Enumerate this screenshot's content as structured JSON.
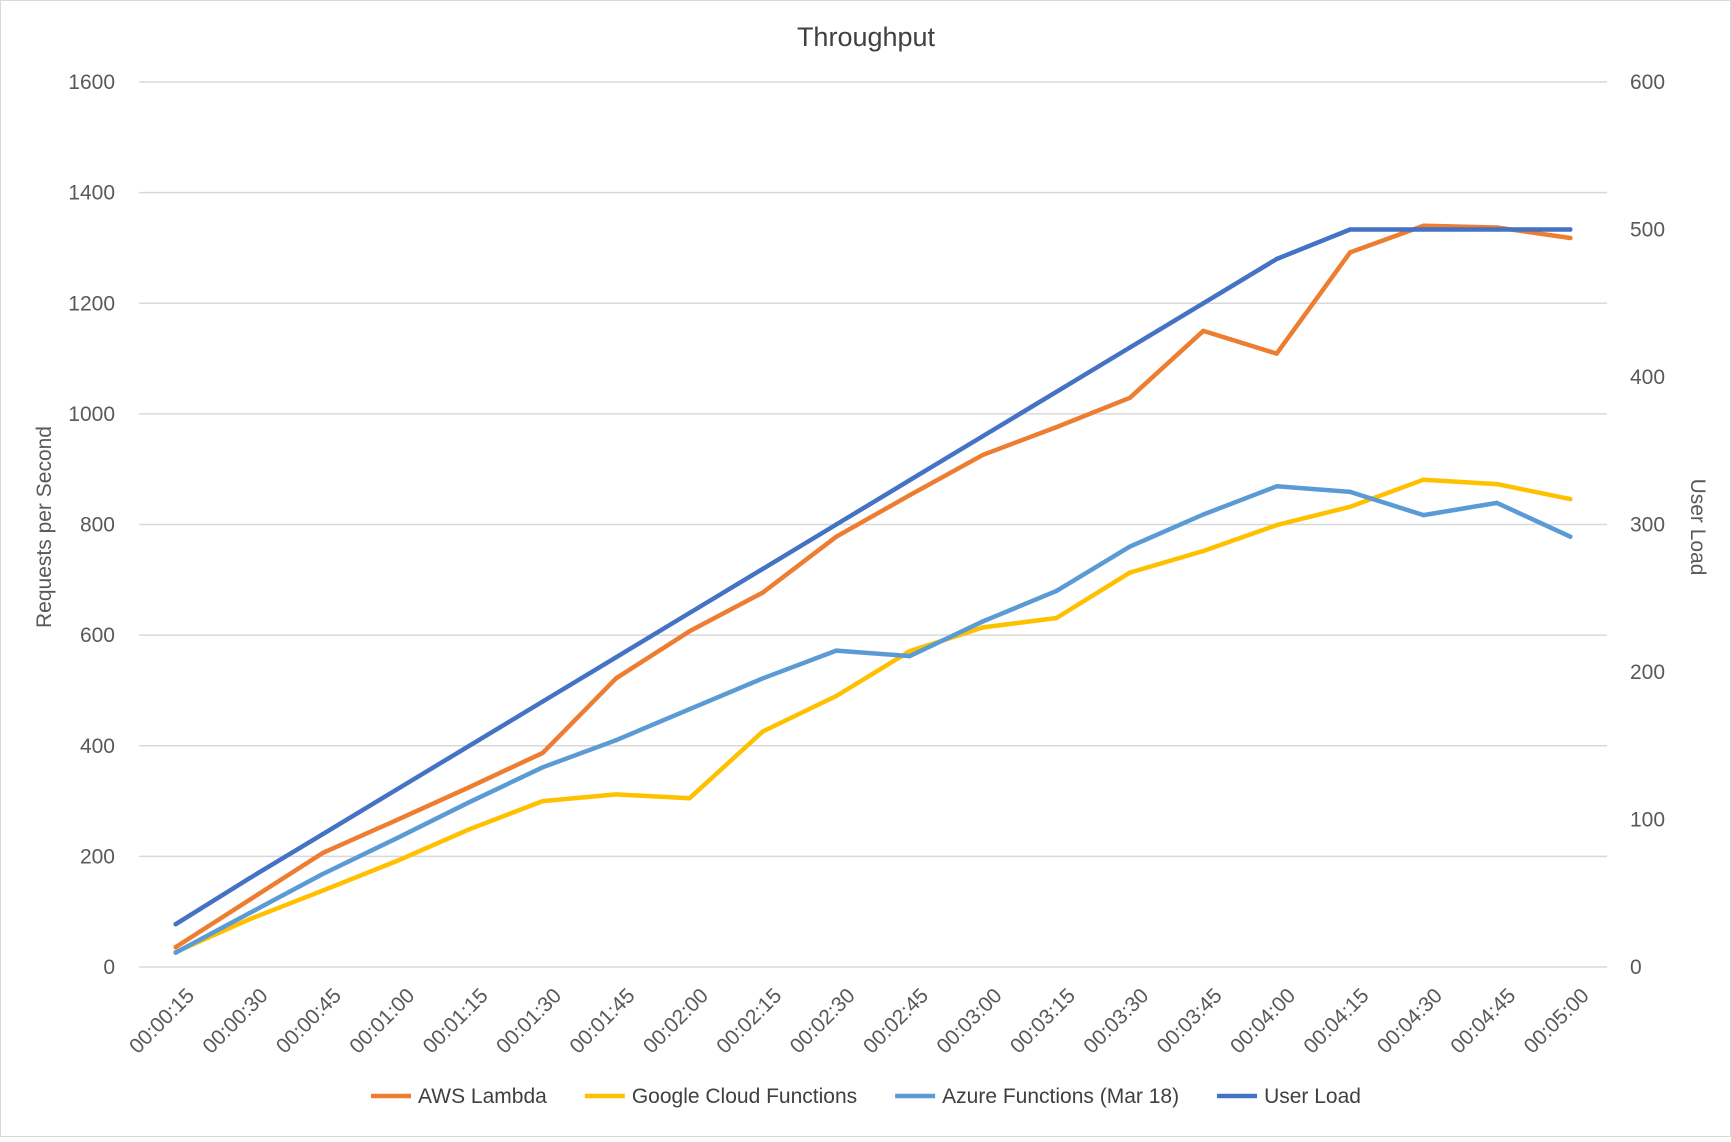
{
  "chart_data": {
    "type": "line",
    "title": "Throughput",
    "ylabel": "Requests per Second",
    "y2label": "User Load",
    "ylim": [
      0,
      1600
    ],
    "y2lim": [
      0,
      600
    ],
    "yticks": [
      "0",
      "200",
      "400",
      "600",
      "800",
      "1000",
      "1200",
      "1400",
      "1600"
    ],
    "y2ticks": [
      "0",
      "100",
      "200",
      "300",
      "400",
      "500",
      "600"
    ],
    "grid": true,
    "legend_position": "bottom",
    "categories": [
      "00:00:15",
      "00:00:30",
      "00:00:45",
      "00:01:00",
      "00:01:15",
      "00:01:30",
      "00:01:45",
      "00:02:00",
      "00:02:15",
      "00:02:30",
      "00:02:45",
      "00:03:00",
      "00:03:15",
      "00:03:30",
      "00:03:45",
      "00:04:00",
      "00:04:15",
      "00:04:30",
      "00:04:45",
      "00:05:00"
    ],
    "series": [
      {
        "name": "AWS Lambda",
        "color": "#ED7D31",
        "axis": "left",
        "values": [
          36,
          121,
          206,
          265,
          325,
          387,
          522,
          607,
          677,
          778,
          853,
          926,
          976,
          1029,
          1150,
          1109,
          1292,
          1340,
          1337,
          1318
        ]
      },
      {
        "name": "Google Cloud Functions",
        "color": "#FFC000",
        "axis": "left",
        "values": [
          27,
          86,
          138,
          191,
          249,
          300,
          312,
          305,
          426,
          490,
          571,
          614,
          631,
          713,
          752,
          799,
          832,
          881,
          873,
          846
        ]
      },
      {
        "name": "Azure Functions (Mar 18)",
        "color": "#5B9BD5",
        "axis": "left",
        "values": [
          26,
          97,
          168,
          232,
          298,
          361,
          410,
          466,
          522,
          572,
          562,
          625,
          680,
          760,
          818,
          869,
          859,
          817,
          839,
          778
        ]
      },
      {
        "name": "User Load",
        "color": "#4472C4",
        "axis": "right",
        "values": [
          29,
          60,
          90,
          120,
          150,
          180,
          210,
          240,
          270,
          300,
          330,
          360,
          390,
          420,
          450,
          480,
          500,
          500,
          500,
          500
        ]
      }
    ]
  }
}
